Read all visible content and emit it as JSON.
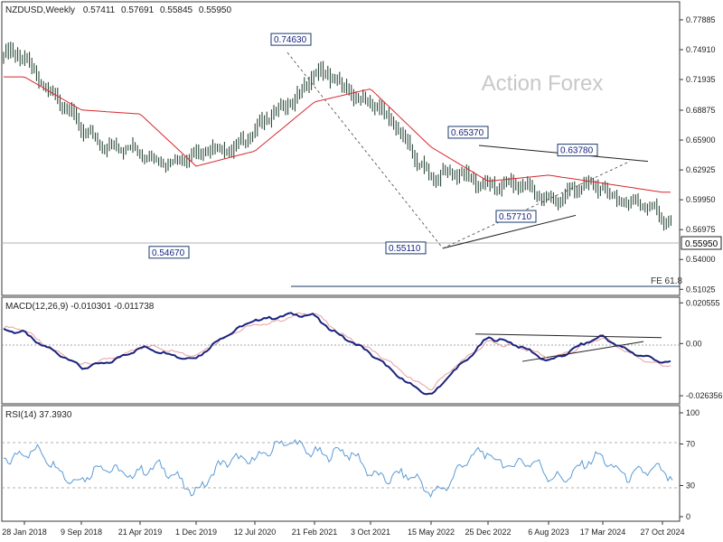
{
  "chart_data": [
    {
      "type": "line",
      "title": "NZDUSD,Weekly",
      "ohlc": {
        "open": "0.57411",
        "high": "0.57691",
        "low": "0.55845",
        "close": "0.55950"
      },
      "watermark": "Action Forex",
      "x_ticks": [
        "28 Jan 2018",
        "9 Sep 2018",
        "21 Apr 2019",
        "1 Dec 2019",
        "12 Jul 2020",
        "21 Feb 2021",
        "3 Oct 2021",
        "15 May 2022",
        "25 Dec 2022",
        "6 Aug 2023",
        "17 Mar 2024",
        "27 Oct 2024"
      ],
      "y_ticks": [
        "0.77885",
        "0.74910",
        "0.71935",
        "0.68875",
        "0.65900",
        "0.62925",
        "0.59950",
        "0.56975",
        "0.54000",
        "0.51025"
      ],
      "ylim": [
        0.506,
        0.795
      ],
      "current_price": "0.55950",
      "series": [
        {
          "name": "",
          "color": "#1a3a2a",
          "x": [
            "28 Jan 2018",
            "9 Sep 2018",
            "21 Apr 2019",
            "1 Dec 2019",
            "12 Jul 2020",
            "21 Feb 2021",
            "3 Oct 2021",
            "15 May 2022",
            "25 Dec 2022",
            "6 Aug 2023",
            "17 Mar 2024",
            "27 Oct 2024"
          ],
          "values": [
            0.742,
            0.668,
            0.642,
            0.641,
            0.665,
            0.725,
            0.699,
            0.625,
            0.618,
            0.603,
            0.612,
            0.581
          ]
        },
        {
          "name": "",
          "color": "#d9262a",
          "x": [
            "28 Jan 2018",
            "9 Sep 2018",
            "21 Apr 2019",
            "1 Dec 2019",
            "12 Jul 2020",
            "21 Feb 2021",
            "3 Oct 2021",
            "15 May 2022",
            "25 Dec 2022",
            "6 Aug 2023",
            "17 Mar 2024",
            "27 Oct 2024"
          ],
          "values": [
            0.722,
            0.689,
            0.685,
            0.633,
            0.648,
            0.697,
            0.71,
            0.652,
            0.618,
            0.624,
            0.616,
            0.607
          ]
        }
      ],
      "annotations": [
        {
          "label": "0.74630",
          "value": 0.7463,
          "date": "21 Feb 2021"
        },
        {
          "label": "0.54670",
          "value": 0.5467,
          "date": "1 Dec 2019"
        },
        {
          "label": "0.65370",
          "value": 0.6537,
          "date": "25 Dec 2022"
        },
        {
          "label": "0.55110",
          "value": 0.5511,
          "date": "15 May 2022"
        },
        {
          "label": "0.57710",
          "value": 0.5771,
          "date": "6 Aug 2023"
        },
        {
          "label": "0.63780",
          "value": 0.6378,
          "date": "17 Mar 2024"
        }
      ],
      "fe_label": "FE 61.8",
      "fe_value": 0.5205
    },
    {
      "type": "line",
      "title": "MACD(12,26,9) -0.010301 -0.011738",
      "y_ticks": [
        "0.020555",
        "0.00",
        "-0.026356"
      ],
      "ylim": [
        -0.0295,
        0.0225
      ],
      "series": [
        {
          "name": "",
          "color": "#1a237e",
          "x": [
            "28 Jan 2018",
            "9 Sep 2018",
            "21 Apr 2019",
            "1 Dec 2019",
            "12 Jul 2020",
            "21 Feb 2021",
            "3 Oct 2021",
            "15 May 2022",
            "25 Dec 2022",
            "6 Aug 2023",
            "17 Mar 2024",
            "27 Oct 2024"
          ],
          "values": [
            0.006,
            -0.013,
            -0.003,
            -0.007,
            0.013,
            0.014,
            -0.006,
            -0.027,
            0.004,
            -0.008,
            0.003,
            -0.0103
          ]
        },
        {
          "name": "",
          "color": "#e8a0a0",
          "x": [
            "28 Jan 2018",
            "9 Sep 2018",
            "21 Apr 2019",
            "1 Dec 2019",
            "12 Jul 2020",
            "21 Feb 2021",
            "3 Oct 2021",
            "15 May 2022",
            "25 Dec 2022",
            "6 Aug 2023",
            "17 Mar 2024",
            "27 Oct 2024"
          ],
          "values": [
            0.007,
            -0.012,
            -0.002,
            -0.005,
            0.01,
            0.015,
            -0.004,
            -0.023,
            0.002,
            -0.007,
            0.002,
            -0.0117
          ]
        }
      ]
    },
    {
      "type": "line",
      "title": "RSI(14) 37.3930",
      "y_ticks": [
        "100",
        "70",
        "30",
        "0"
      ],
      "ylim": [
        0,
        100
      ],
      "series": [
        {
          "name": "",
          "color": "#5b9bd5",
          "x": [
            "28 Jan 2018",
            "9 Sep 2018",
            "21 Apr 2019",
            "1 Dec 2019",
            "12 Jul 2020",
            "21 Feb 2021",
            "3 Oct 2021",
            "15 May 2022",
            "25 Dec 2022",
            "6 Aug 2023",
            "17 Mar 2024",
            "27 Oct 2024"
          ],
          "values": [
            62,
            38,
            48,
            30,
            63,
            68,
            47,
            26,
            62,
            40,
            52,
            37.4
          ]
        }
      ]
    }
  ]
}
